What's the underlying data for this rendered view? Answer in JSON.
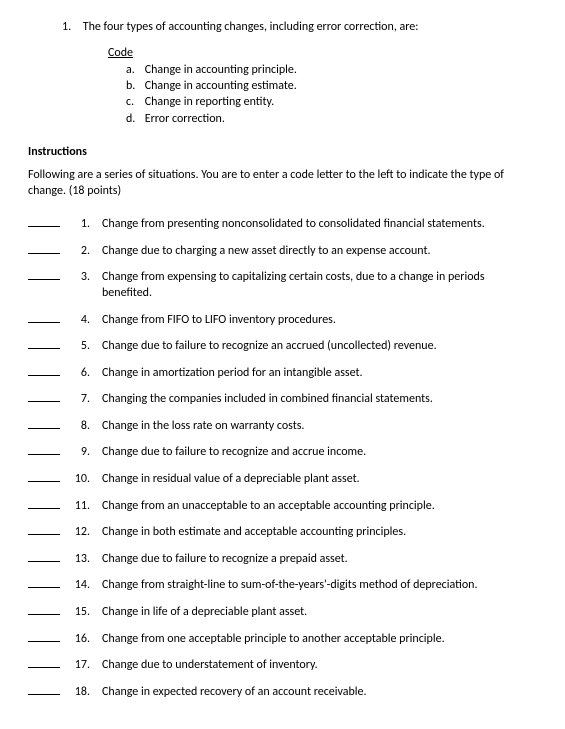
{
  "question": {
    "number": "1.",
    "text": "The four types of accounting changes, including error correction, are:"
  },
  "code": {
    "heading": "Code",
    "items": [
      {
        "letter": "a.",
        "text": "Change in accounting principle."
      },
      {
        "letter": "b.",
        "text": "Change in accounting estimate."
      },
      {
        "letter": "c.",
        "text": "Change in reporting entity."
      },
      {
        "letter": "d.",
        "text": "Error correction."
      }
    ]
  },
  "instructions": {
    "heading": "Instructions",
    "text": "Following are a series of situations. You are to enter a code letter to the left to indicate the type of change. (18 points)"
  },
  "situations": [
    {
      "num": "1.",
      "text": "Change from presenting nonconsolidated to consolidated financial statements."
    },
    {
      "num": "2.",
      "text": "Change due to charging a new asset directly to an expense account."
    },
    {
      "num": "3.",
      "text": "Change from expensing to capitalizing certain costs, due to a change in periods benefited."
    },
    {
      "num": "4.",
      "text": "Change from FIFO to LIFO inventory procedures."
    },
    {
      "num": "5.",
      "text": "Change due to failure to recognize an accrued (uncollected) revenue."
    },
    {
      "num": "6.",
      "text": "Change in amortization period for an intangible asset."
    },
    {
      "num": "7.",
      "text": "Changing the companies included in combined financial statements."
    },
    {
      "num": "8.",
      "text": "Change in the loss rate on warranty costs."
    },
    {
      "num": "9.",
      "text": "Change due to failure to recognize and accrue income."
    },
    {
      "num": "10.",
      "text": "Change in residual value of a depreciable plant asset."
    },
    {
      "num": "11.",
      "text": "Change from an unacceptable to an acceptable accounting principle."
    },
    {
      "num": "12.",
      "text": "Change in both estimate and acceptable accounting principles."
    },
    {
      "num": "13.",
      "text": "Change due to failure to recognize a prepaid asset."
    },
    {
      "num": "14.",
      "text": "Change from straight-line to sum-of-the-years'-digits method of depreciation."
    },
    {
      "num": "15.",
      "text": "Change in life of a depreciable plant asset."
    },
    {
      "num": "16.",
      "text": "Change from one acceptable principle to another acceptable principle."
    },
    {
      "num": "17.",
      "text": "Change due to understatement of inventory."
    },
    {
      "num": "18.",
      "text": "Change in expected recovery of an account receivable."
    }
  ]
}
